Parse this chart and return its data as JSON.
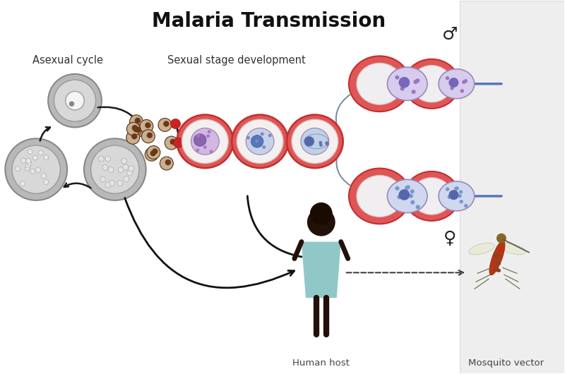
{
  "title": "Malaria Transmission",
  "title_fontsize": 20,
  "title_fontweight": "bold",
  "bg_color": "#ffffff",
  "right_panel_color": "#eeeeee",
  "labels": {
    "asexual_cycle": "Asexual cycle",
    "sexual_stage": "Sexual stage development",
    "human_host": "Human host",
    "mosquito_vector": "Mosquito vector",
    "male_symbol": "♂",
    "female_symbol": "♀"
  },
  "label_fontsize": 10.5,
  "colors": {
    "rbc_red": "#e05555",
    "rbc_orange": "#e8734a",
    "cell_purple_light": "#d0c0e0",
    "cell_blue_light": "#c8d4ee",
    "cell_white": "#f0eeee",
    "gray_outer": "#aaaaaa",
    "gray_mid": "#cccccc",
    "gray_light": "#e8e8e8",
    "arrow_black": "#1a1a1a",
    "arrow_blue": "#5577bb",
    "dot_dark": "#3a1a08",
    "dot_red": "#cc2222",
    "human_dark": "#221108",
    "human_dress": "#90c8c8",
    "mosquito_body": "#bb3311"
  }
}
